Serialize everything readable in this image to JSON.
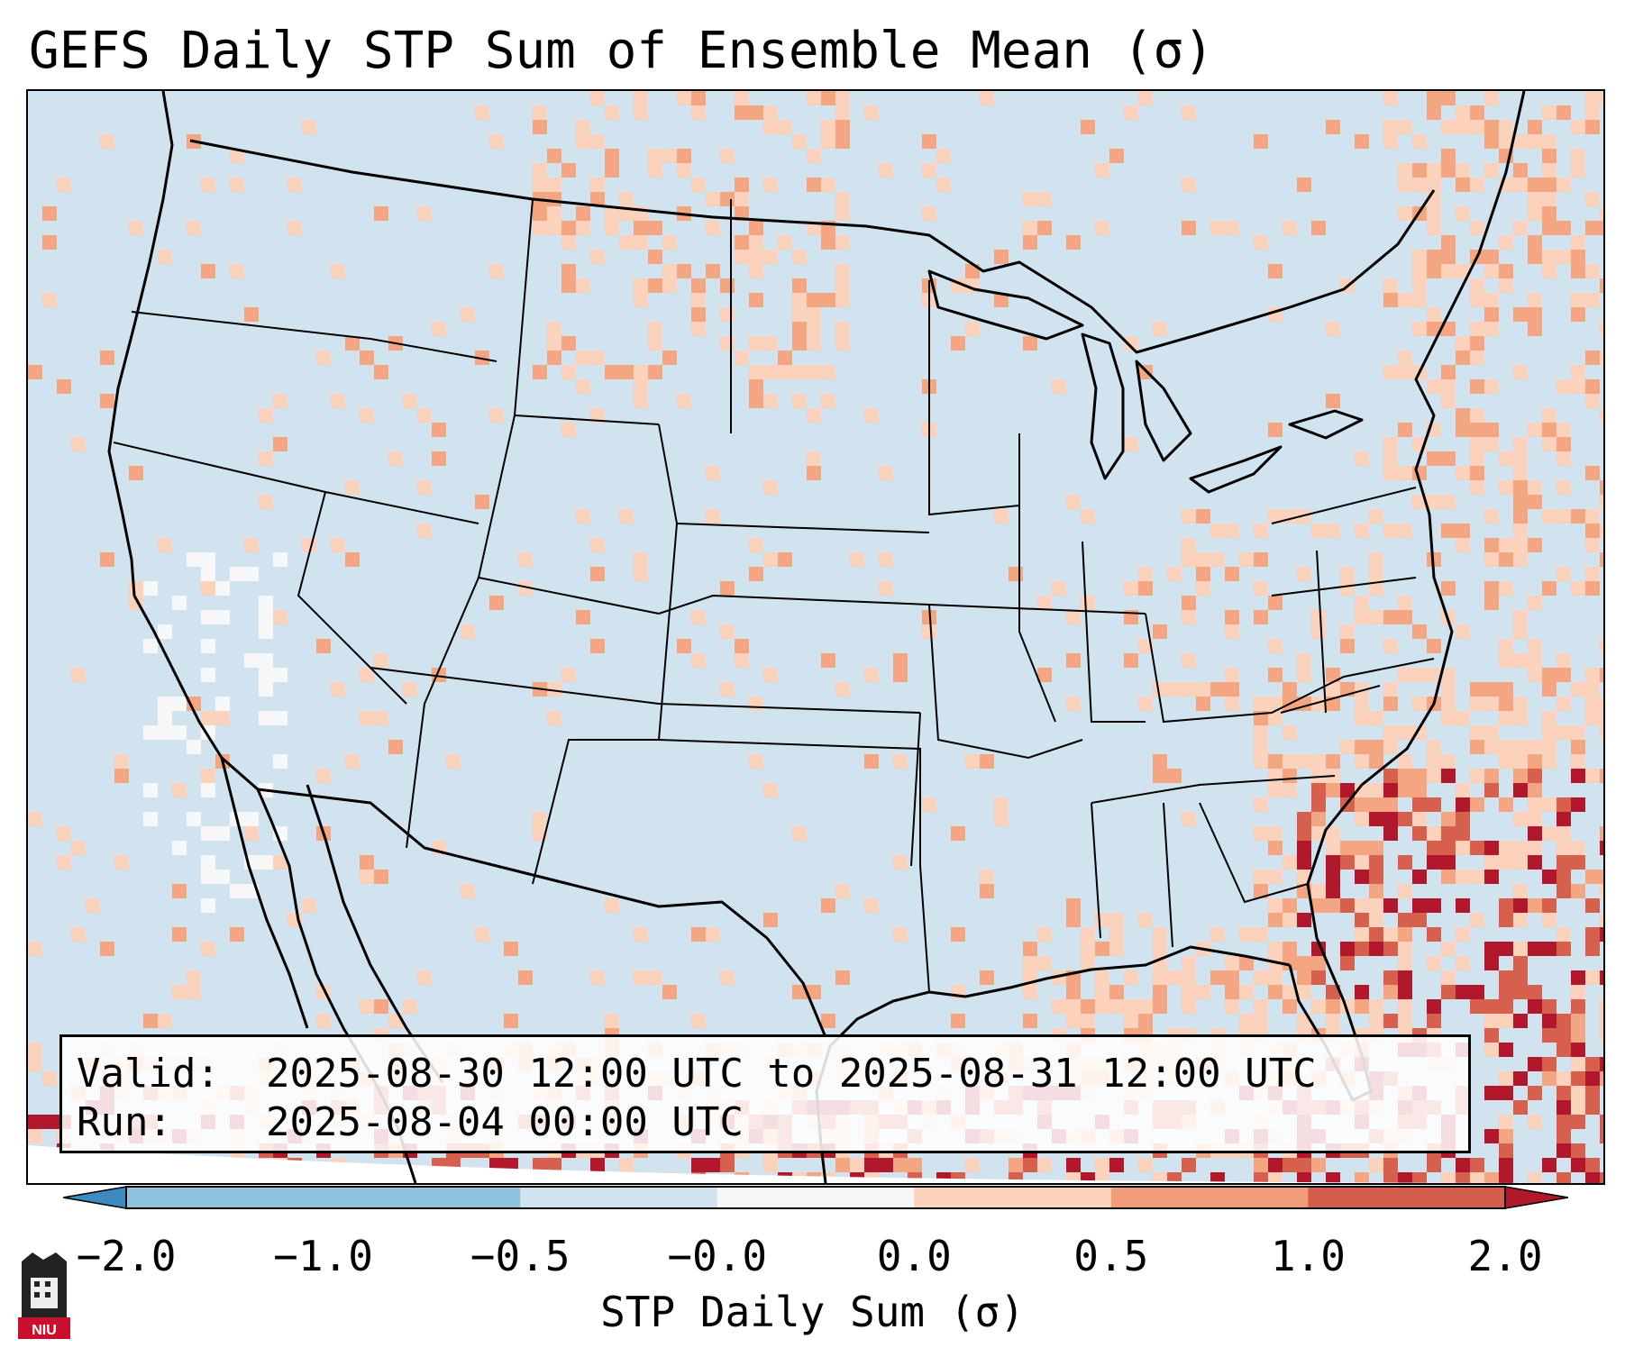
{
  "title": "GEFS Daily STP Sum of Ensemble Mean (σ)",
  "info": {
    "valid_label": "Valid:",
    "valid_value": "2025-08-30 12:00 UTC to 2025-08-31 12:00 UTC",
    "run_label": "Run:",
    "run_value": "2025-08-04 00:00 UTC"
  },
  "colorbar": {
    "label": "STP Daily Sum (σ)",
    "ticks": [
      "−2.0",
      "−1.0",
      "−0.5",
      "−0.0",
      "0.0",
      "0.5",
      "1.0",
      "2.0"
    ],
    "colors": [
      "#3e8bc1",
      "#8fc2de",
      "#d0e3ef",
      "#f7f7f7",
      "#fbd2bc",
      "#f09c7b",
      "#d25d4c",
      "#b2182b"
    ]
  },
  "map": {
    "region": "Continental United States",
    "background_color": "#d0e3ef",
    "land_outline_color": "#000000"
  },
  "logo": {
    "text": "NIU"
  }
}
